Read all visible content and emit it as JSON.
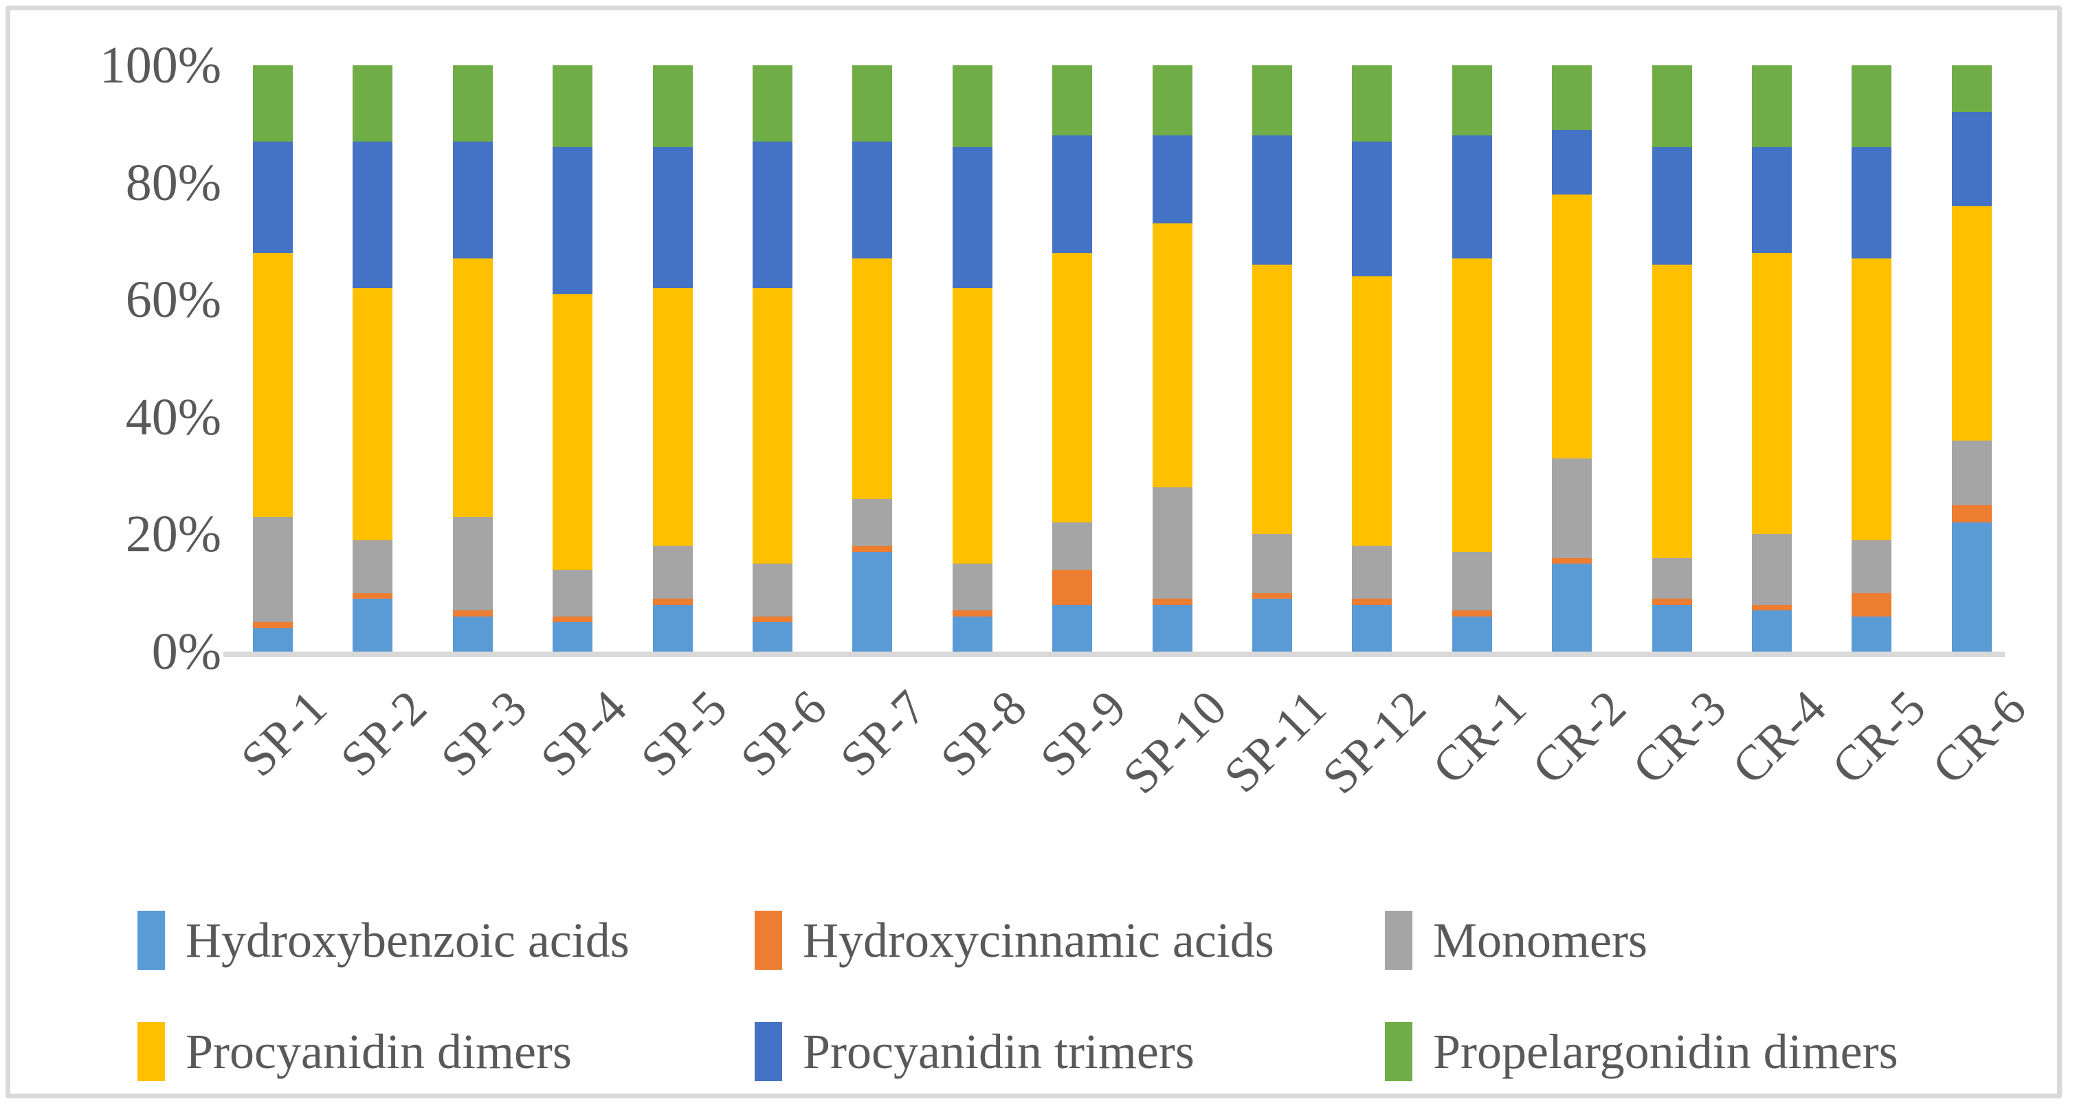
{
  "chart_data": {
    "type": "bar",
    "subtype": "stacked-100-percent",
    "title": "",
    "xlabel": "",
    "ylabel": "",
    "grid": false,
    "legend_position": "bottom",
    "y_axis": {
      "min": 0,
      "max": 100,
      "tick_step": 20,
      "ticks": [
        "0%",
        "20%",
        "40%",
        "60%",
        "80%",
        "100%"
      ]
    },
    "categories": [
      "SP-1",
      "SP-2",
      "SP-3",
      "SP-4",
      "SP-5",
      "SP-6",
      "SP-7",
      "SP-8",
      "SP-9",
      "SP-10",
      "SP-11",
      "SP-12",
      "CR-1",
      "CR-2",
      "CR-3",
      "CR-4",
      "CR-5",
      "CR-6"
    ],
    "series": [
      {
        "name": "Hydroxybenzoic acids",
        "color": "#5B9BD5",
        "values": [
          4,
          9,
          6,
          5,
          8,
          5,
          17,
          6,
          8,
          8,
          9,
          8,
          6,
          15,
          8,
          7,
          6,
          22
        ]
      },
      {
        "name": "Hydroxycinnamic acids",
        "color": "#ED7D31",
        "values": [
          1,
          1,
          1,
          1,
          1,
          1,
          1,
          1,
          6,
          1,
          1,
          1,
          1,
          1,
          1,
          1,
          4,
          3
        ]
      },
      {
        "name": "Monomers",
        "color": "#A5A5A5",
        "values": [
          18,
          9,
          16,
          8,
          9,
          9,
          8,
          8,
          8,
          19,
          10,
          9,
          10,
          17,
          7,
          12,
          9,
          11
        ]
      },
      {
        "name": "Procyanidin dimers",
        "color": "#FFC000",
        "values": [
          45,
          43,
          44,
          47,
          44,
          47,
          41,
          47,
          46,
          45,
          46,
          46,
          50,
          45,
          50,
          48,
          48,
          40
        ]
      },
      {
        "name": "Procyanidin trimers",
        "color": "#4472C4",
        "values": [
          19,
          25,
          20,
          25,
          24,
          25,
          20,
          24,
          20,
          15,
          22,
          23,
          21,
          11,
          20,
          18,
          19,
          16
        ]
      },
      {
        "name": "Propelargonidin dimers",
        "color": "#70AD47",
        "values": [
          13,
          13,
          13,
          14,
          14,
          13,
          13,
          14,
          12,
          12,
          12,
          13,
          12,
          11,
          14,
          14,
          14,
          8
        ]
      }
    ],
    "legend_rows": [
      [
        0,
        1,
        2
      ],
      [
        3,
        4,
        5
      ]
    ]
  },
  "style": {
    "axis_text_color": "#595959",
    "axis_line_color": "#D9D9D9",
    "frame_border_color": "#D9D9D9",
    "background": "#FFFFFF"
  }
}
